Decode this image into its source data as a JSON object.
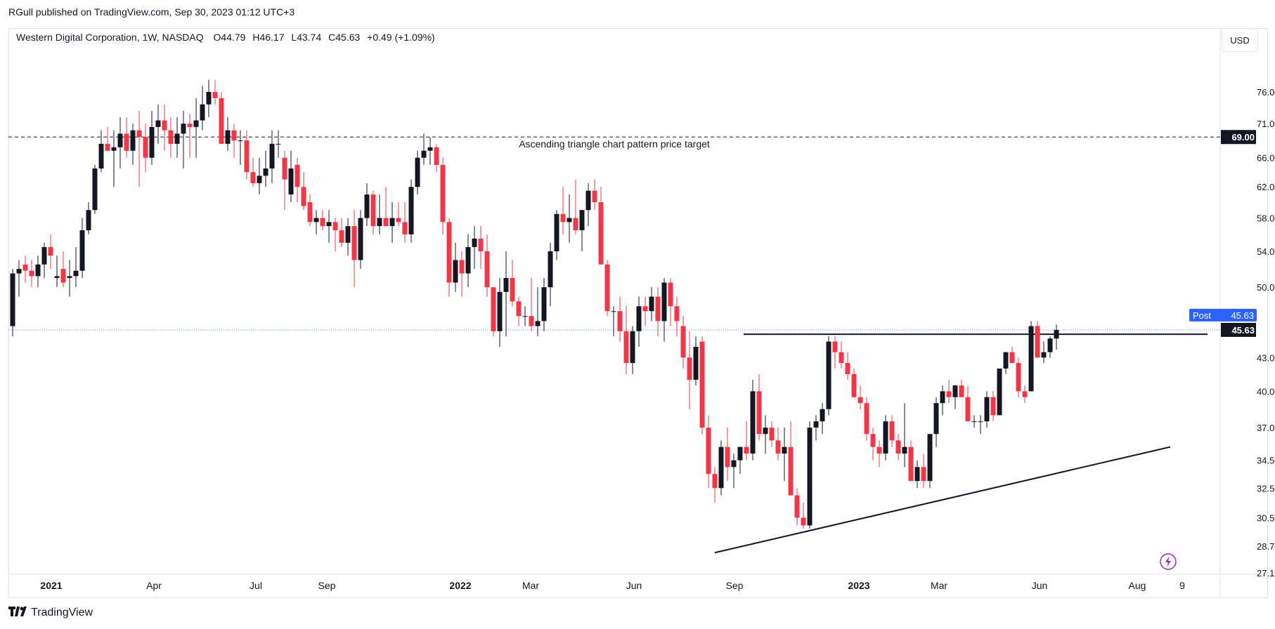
{
  "publisher_line": "RGull published on TradingView.com, Sep 30, 2023 01:12 UTC+3",
  "symbol": {
    "name": "Western Digital Corporation",
    "interval": "1W",
    "exchange": "NASDAQ",
    "open": "O44.79",
    "high": "H46.17",
    "low": "L43.74",
    "close": "C45.63",
    "change": "+0.49 (+1.09%)"
  },
  "currency": "USD",
  "footer": {
    "brand": "TradingView"
  },
  "colors": {
    "up": "#131722",
    "down": "#f23645",
    "post": "#2962ff",
    "axis_label_bg": "#131722"
  },
  "icons": {
    "flash": "flash-icon",
    "logo": "tradingview-logo-icon"
  },
  "chart_data": {
    "type": "candlestick",
    "timeframe": "1W",
    "price_axis": {
      "ticks": [
        "76.00",
        "71.00",
        "66.00",
        "62.00",
        "58.00",
        "54.00",
        "50.00",
        "43.00",
        "40.00",
        "37.00",
        "34.50",
        "32.50",
        "30.50",
        "28.70",
        "27.10"
      ],
      "scale": "log",
      "range": [
        27.1,
        80
      ]
    },
    "time_axis": {
      "labels": [
        {
          "text": "2021",
          "bold": true
        },
        {
          "text": "Apr",
          "bold": false
        },
        {
          "text": "Jul",
          "bold": false
        },
        {
          "text": "Sep",
          "bold": false
        },
        {
          "text": "2022",
          "bold": true
        },
        {
          "text": "Mar",
          "bold": false
        },
        {
          "text": "Jun",
          "bold": false
        },
        {
          "text": "Sep",
          "bold": false
        },
        {
          "text": "2023",
          "bold": true
        },
        {
          "text": "Mar",
          "bold": false
        },
        {
          "text": "Jun",
          "bold": false
        },
        {
          "text": "Aug",
          "bold": false
        },
        {
          "text": "9",
          "bold": false
        }
      ]
    },
    "candles_ohlc": [
      [
        46,
        52,
        45,
        51.5
      ],
      [
        51.5,
        53,
        49,
        52
      ],
      [
        52.5,
        53.5,
        50.5,
        51.8
      ],
      [
        51.8,
        53,
        50,
        51.2
      ],
      [
        51.2,
        53.5,
        50,
        52.5
      ],
      [
        52.5,
        55,
        51,
        54.5
      ],
      [
        54.5,
        56,
        52,
        53.5
      ],
      [
        51,
        53.5,
        50,
        51.2
      ],
      [
        52,
        54,
        50,
        50.5
      ],
      [
        51,
        53,
        49,
        51.2
      ],
      [
        51.2,
        54.5,
        50,
        51.8
      ],
      [
        51.8,
        58,
        51,
        56.5
      ],
      [
        56.5,
        60,
        56,
        59
      ],
      [
        59,
        65,
        58.5,
        64.5
      ],
      [
        64.5,
        70,
        64,
        68
      ],
      [
        68,
        70.5,
        67,
        67
      ],
      [
        67,
        70,
        62,
        67.5
      ],
      [
        67.5,
        72,
        64.5,
        69.5
      ],
      [
        69.5,
        72,
        66,
        67
      ],
      [
        67,
        71,
        65,
        70
      ],
      [
        70,
        73,
        62,
        69
      ],
      [
        69,
        71,
        64,
        66
      ],
      [
        66,
        73,
        65,
        70.5
      ],
      [
        70.5,
        74,
        68,
        71.5
      ],
      [
        71.5,
        74,
        67,
        70
      ],
      [
        70,
        72,
        66,
        68
      ],
      [
        68,
        72,
        66,
        69.5
      ],
      [
        69.5,
        73,
        64.5,
        71
      ],
      [
        71,
        72.5,
        66,
        70.5
      ],
      [
        70.5,
        75,
        66,
        71.5
      ],
      [
        71.5,
        77,
        70,
        74
      ],
      [
        74,
        78,
        72,
        76
      ],
      [
        76,
        78,
        74,
        75
      ],
      [
        75,
        76,
        68,
        68
      ],
      [
        68,
        72,
        67,
        70
      ],
      [
        70,
        71,
        66,
        68.5
      ],
      [
        68.5,
        70,
        65,
        68.5
      ],
      [
        68.5,
        70,
        63,
        64
      ],
      [
        64,
        66,
        62,
        62.5
      ],
      [
        62.5,
        66,
        61,
        63.5
      ],
      [
        63.5,
        67,
        62,
        64.5
      ],
      [
        64.5,
        70,
        62.5,
        68
      ],
      [
        68,
        70,
        66,
        68
      ],
      [
        66,
        67,
        59,
        63
      ],
      [
        61,
        67,
        60,
        64.5
      ],
      [
        65,
        66,
        60,
        62
      ],
      [
        62,
        64,
        59,
        59.5
      ],
      [
        60,
        61,
        57,
        57.5
      ],
      [
        57.5,
        59,
        56,
        58
      ],
      [
        58,
        59,
        56.5,
        57
      ],
      [
        57,
        59,
        55,
        57.5
      ],
      [
        57.5,
        58,
        54,
        56.5
      ],
      [
        56.5,
        58,
        54.5,
        55
      ],
      [
        55,
        58,
        53.5,
        57
      ],
      [
        57,
        59,
        50,
        53
      ],
      [
        53,
        59,
        52,
        58
      ],
      [
        58,
        62.5,
        57,
        61
      ],
      [
        61,
        61.5,
        56,
        57
      ],
      [
        57,
        61,
        56,
        58
      ],
      [
        58,
        62,
        57,
        57
      ],
      [
        57,
        60,
        55,
        58
      ],
      [
        58,
        60,
        57,
        57.5
      ],
      [
        57.5,
        60,
        55,
        56
      ],
      [
        56,
        63,
        55,
        62
      ],
      [
        62,
        67,
        61,
        66
      ],
      [
        66,
        69.5,
        65,
        67
      ],
      [
        67,
        69,
        65,
        67.5
      ],
      [
        67.5,
        68,
        64,
        65
      ],
      [
        65,
        66,
        56,
        57.5
      ],
      [
        57.5,
        58,
        49,
        50.5
      ],
      [
        50.5,
        55,
        49.5,
        53
      ],
      [
        53,
        54,
        49,
        51.5
      ],
      [
        51.5,
        56,
        50,
        54.5
      ],
      [
        54.5,
        57,
        52,
        55.5
      ],
      [
        55.5,
        57,
        52,
        54
      ],
      [
        54,
        56,
        49,
        50
      ],
      [
        50,
        50,
        45,
        45.5
      ],
      [
        45.5,
        51,
        44,
        49.5
      ],
      [
        49.5,
        54,
        45,
        51
      ],
      [
        51,
        53,
        48,
        48.5
      ],
      [
        48.5,
        49,
        46,
        47
      ],
      [
        47,
        48,
        46,
        47
      ],
      [
        47,
        51,
        45.5,
        46
      ],
      [
        46,
        50,
        45,
        46.5
      ],
      [
        46.5,
        51,
        45.5,
        50
      ],
      [
        50,
        55,
        48,
        54
      ],
      [
        54,
        59,
        53,
        58.5
      ],
      [
        58.5,
        62,
        56,
        57.5
      ],
      [
        57.5,
        61,
        55,
        58
      ],
      [
        58,
        63,
        56,
        56.5
      ],
      [
        56.5,
        58,
        54,
        59
      ],
      [
        59,
        62.5,
        57,
        61.5
      ],
      [
        61.5,
        63,
        59,
        60
      ],
      [
        60,
        62,
        52.5,
        52.5
      ],
      [
        52.5,
        53,
        47,
        47.5
      ],
      [
        47.5,
        48,
        45,
        47.5
      ],
      [
        47.5,
        49,
        44.5,
        45.5
      ],
      [
        45.5,
        48,
        41.5,
        42.5
      ],
      [
        42.5,
        46,
        41.5,
        45.5
      ],
      [
        45.5,
        49,
        44,
        48
      ],
      [
        48,
        49,
        46,
        47.5
      ],
      [
        47.5,
        50,
        46.5,
        49
      ],
      [
        49,
        50,
        45,
        46.5
      ],
      [
        46.5,
        51,
        44.5,
        50.5
      ],
      [
        50.5,
        51,
        46,
        48
      ],
      [
        48,
        49,
        45,
        46.5
      ],
      [
        46,
        47,
        42,
        43
      ],
      [
        43,
        45.5,
        38.5,
        41
      ],
      [
        41,
        45,
        40.5,
        44
      ],
      [
        44.5,
        45,
        36.5,
        37
      ],
      [
        37,
        38,
        32.5,
        33.5
      ],
      [
        33.5,
        34,
        31.5,
        32.5
      ],
      [
        32.5,
        36,
        32,
        35.5
      ],
      [
        35.5,
        37,
        33,
        34
      ],
      [
        34,
        35,
        32.5,
        34.5
      ],
      [
        34.5,
        35.5,
        33.5,
        35.5
      ],
      [
        35.5,
        37.5,
        34.5,
        35
      ],
      [
        35,
        41,
        34.5,
        40
      ],
      [
        40,
        41.5,
        36,
        36.5
      ],
      [
        36.5,
        38,
        35,
        37
      ],
      [
        37,
        37.5,
        35.5,
        36
      ],
      [
        36,
        37,
        34.5,
        35
      ],
      [
        35,
        37,
        33,
        35.5
      ],
      [
        35.5,
        37.5,
        32,
        32
      ],
      [
        32,
        32.5,
        30,
        30.5
      ],
      [
        30.5,
        31.5,
        29.8,
        30
      ],
      [
        30,
        37.5,
        29.8,
        37
      ],
      [
        37,
        38,
        36,
        37.5
      ],
      [
        37.5,
        39,
        36.5,
        38.5
      ],
      [
        38.5,
        45,
        38,
        44.5
      ],
      [
        44.5,
        45,
        42,
        43.5
      ],
      [
        43.5,
        44.5,
        42,
        42.5
      ],
      [
        42.5,
        43.5,
        41,
        41.5
      ],
      [
        41.5,
        42,
        39.5,
        39.5
      ],
      [
        39.5,
        40.5,
        38.5,
        39
      ],
      [
        39,
        39.5,
        36,
        36.5
      ],
      [
        36.5,
        37,
        34.5,
        35.5
      ],
      [
        35.5,
        36,
        34,
        35
      ],
      [
        35,
        38,
        34.5,
        37.5
      ],
      [
        37.5,
        38,
        35.5,
        36
      ],
      [
        36,
        36.5,
        34.5,
        35
      ],
      [
        35,
        39,
        34,
        35.5
      ],
      [
        35.5,
        36,
        33,
        33
      ],
      [
        33,
        34.5,
        32.5,
        34
      ],
      [
        34,
        35,
        32.5,
        33
      ],
      [
        33,
        35.5,
        32.5,
        36.5
      ],
      [
        36.5,
        39.5,
        35.5,
        39
      ],
      [
        39,
        40.5,
        38,
        40
      ],
      [
        40,
        41,
        39,
        39.5
      ],
      [
        39.5,
        40.5,
        38.5,
        40.5
      ],
      [
        40.5,
        41,
        39.5,
        39.5
      ],
      [
        39.5,
        40.5,
        37.5,
        37.5
      ],
      [
        37.5,
        38,
        37,
        37.5
      ],
      [
        37.5,
        38,
        36.5,
        37.5
      ],
      [
        37.5,
        40,
        37,
        39.5
      ],
      [
        39.5,
        40,
        37.5,
        38
      ],
      [
        38,
        42,
        38,
        42
      ],
      [
        42,
        43.5,
        41.5,
        43.5
      ],
      [
        43.5,
        44,
        42.5,
        42.5
      ],
      [
        42.5,
        43,
        39.5,
        40
      ],
      [
        40,
        40.5,
        39,
        39.5
      ],
      [
        40,
        46.5,
        40,
        46
      ],
      [
        46,
        46.5,
        43,
        43
      ],
      [
        43,
        44.5,
        42.5,
        43.5
      ],
      [
        43.5,
        45,
        43,
        44.79
      ],
      [
        44.79,
        46.17,
        43.74,
        45.63
      ]
    ],
    "horizontal_lines": [
      {
        "price": 69.0,
        "style": "dashed",
        "label": "Ascending triangle chart pattern price target"
      },
      {
        "price": 45.2,
        "style": "solid"
      }
    ],
    "trend_line": {
      "from": {
        "bar": 111,
        "price": 28.3
      },
      "to": {
        "bar": 183,
        "price": 35.5
      }
    },
    "current_price": "45.63",
    "post_label": {
      "text": "Post",
      "price": "45.63"
    },
    "target_label": "69.00"
  }
}
